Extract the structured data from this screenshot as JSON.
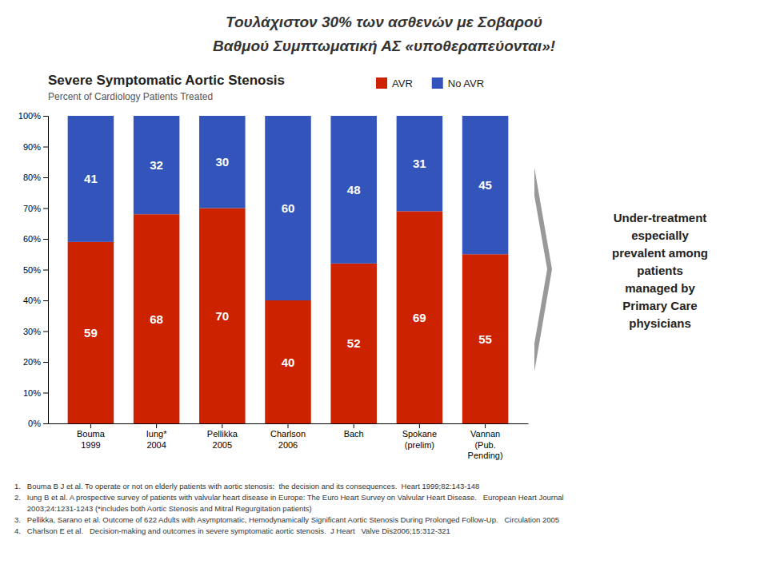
{
  "chart_data": {
    "type": "bar",
    "stacked": true,
    "title": "Severe Symptomatic Aortic Stenosis",
    "subtitle": "Percent of Cardiology Patients Treated",
    "categories": [
      "Bouma\n1999",
      "Iung*\n2004",
      "Pellikka\n2005",
      "Charlson\n2006",
      "Bach",
      "Spokane\n(prelim)",
      "Vannan\n(Pub.\nPending)"
    ],
    "series": [
      {
        "name": "AVR",
        "color": "#cc2200",
        "values": [
          59,
          68,
          70,
          40,
          52,
          69,
          55
        ]
      },
      {
        "name": "No AVR",
        "color": "#3355bb",
        "values": [
          41,
          32,
          30,
          60,
          48,
          31,
          45
        ]
      }
    ],
    "ylim": [
      0,
      100
    ],
    "yticks": [
      {
        "value": 0,
        "label": "0%"
      },
      {
        "value": 10,
        "label": "10%"
      },
      {
        "value": 20,
        "label": "20%"
      },
      {
        "value": 30,
        "label": "30%"
      },
      {
        "value": 40,
        "label": "40%"
      },
      {
        "value": 50,
        "label": "50%"
      },
      {
        "value": 60,
        "label": "60%"
      },
      {
        "value": 70,
        "label": "70%"
      },
      {
        "value": 80,
        "label": "80%"
      },
      {
        "value": 90,
        "label": "90%"
      },
      {
        "value": 100,
        "label": "100%"
      }
    ],
    "grid": false,
    "legend": "top",
    "data_labels": true,
    "annotations": [
      "Τουλάχιστον 30% των ασθενών με Σοβαρού",
      "Βαθμού Συμπτωματική ΑΣ «υποθεραπεύονται»!",
      "Under-treatment\nespecially\nprevalent among\npatients\nmanaged by\nPrimary Care\nphysicians",
      "1.   Bouma B J et al. To operate or not on elderly patients with aortic stenosis:  the decision and its consequences.  Heart 1999;82:143-148",
      "2.   Iung B et al. A prospective survey of patients with valvular heart disease in Europe: The Euro Heart Survey on Valvular Heart Disease.   European Heart Journal",
      "      2003;24:1231-1243 (*includes both Aortic Stenosis and Mitral Regurgitation patients)",
      "3.   Pellikka, Sarano et al. Outcome of 622 Adults with Asymptomatic, Hemodynamically Significant Aortic Stenosis During Prolonged Follow-Up.   Circulation 2005",
      "4.   Charlson E et al.   Decision-making and outcomes in severe symptomatic aortic stenosis.  J Heart   Valve Dis2006;15:312-321"
    ]
  }
}
